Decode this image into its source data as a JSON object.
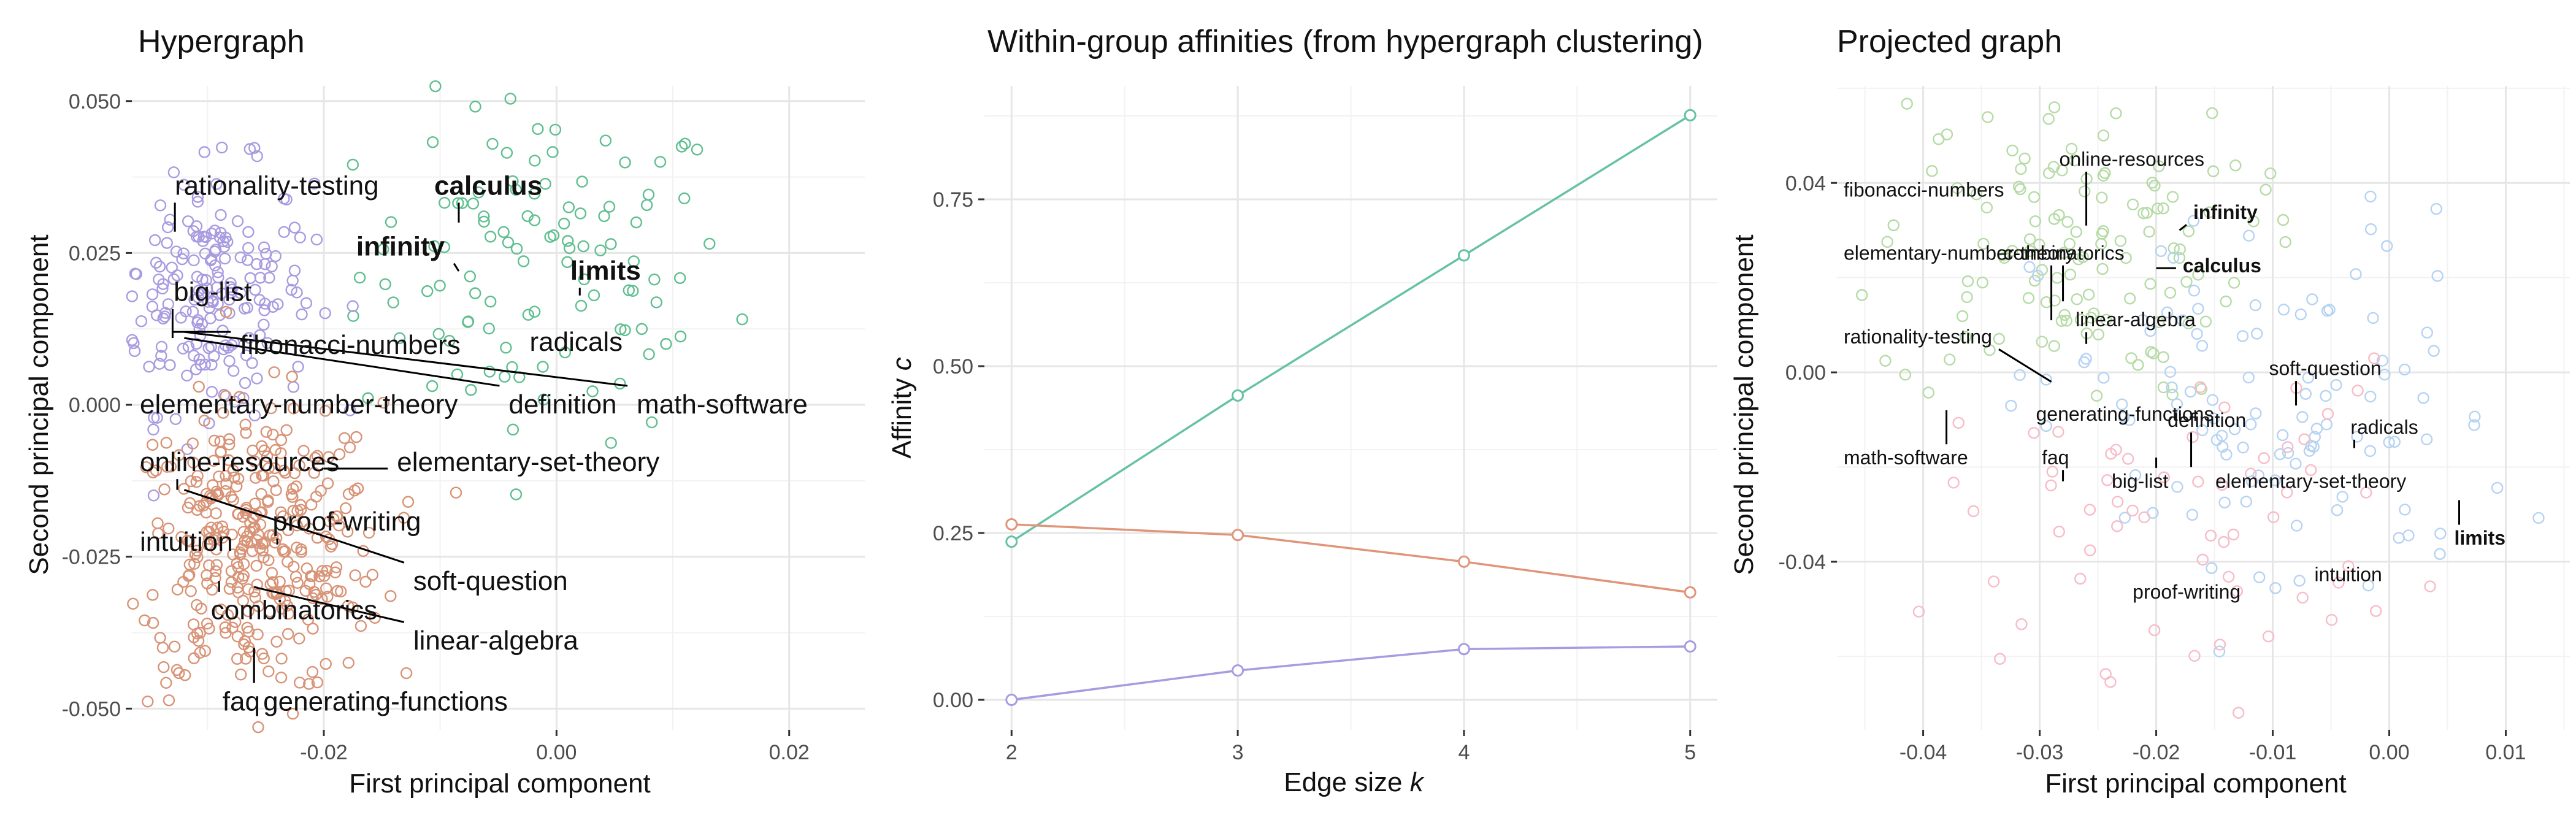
{
  "colors": {
    "hyper_green": "#5fbf8f",
    "hyper_purple": "#a99be0",
    "hyper_orange": "#d89376",
    "proj_green": "#b6dba6",
    "proj_blue": "#b6d3f2",
    "proj_pink": "#f6bcc8",
    "line_green": "#66c2a5",
    "line_orange": "#e0957b",
    "line_purple": "#a99be0"
  },
  "chart_data": [
    {
      "type": "scatter",
      "title": "Hypergraph",
      "xlabel": "First principal component",
      "ylabel": "Second principal component",
      "xlim": [
        -0.0365,
        0.0265
      ],
      "ylim": [
        -0.0535,
        0.0525
      ],
      "xticks": [
        -0.02,
        0.0,
        0.02
      ],
      "xtick_labels": [
        "-0.02",
        "0.00",
        "0.02"
      ],
      "yticks": [
        -0.05,
        -0.025,
        0.0,
        0.025,
        0.05
      ],
      "ytick_labels": [
        "-0.050",
        "-0.025",
        "0.000",
        "0.025",
        "0.050"
      ],
      "grid": true,
      "clusters": [
        {
          "color": "green",
          "n": 110,
          "cx": -0.001,
          "cy": 0.022,
          "sx": 0.008,
          "sy": 0.014
        },
        {
          "color": "purple",
          "n": 200,
          "cx": -0.03,
          "cy": 0.019,
          "sx": 0.0045,
          "sy": 0.01
        },
        {
          "color": "orange",
          "n": 360,
          "cx": -0.026,
          "cy": -0.024,
          "sx": 0.0055,
          "sy": 0.012
        }
      ],
      "labels": [
        {
          "text": "rationality-testing",
          "color": "purple",
          "x": -0.0336,
          "y": 0.0362,
          "bold": false,
          "px": -0.0328,
          "py": 0.0285
        },
        {
          "text": "calculus",
          "color": "green",
          "x": -0.0113,
          "y": 0.0362,
          "bold": true,
          "px": -0.0084,
          "py": 0.03
        },
        {
          "text": "infinity",
          "color": "green",
          "x": -0.018,
          "y": 0.0262,
          "bold": true,
          "px": -0.0084,
          "py": 0.022
        },
        {
          "text": "limits",
          "color": "green",
          "x": 0.0004,
          "y": 0.0222,
          "bold": true,
          "px": 0.002,
          "py": 0.018
        },
        {
          "text": "big-list",
          "color": "purple",
          "x": -0.0337,
          "y": 0.0187,
          "bold": false,
          "px": -0.033,
          "py": 0.011
        },
        {
          "text": "radicals",
          "color": "green",
          "x": -0.0031,
          "y": 0.0105,
          "bold": false,
          "px": 0.001,
          "py": 0.008
        },
        {
          "text": "fibonacci-numbers",
          "color": "purple",
          "x": -0.028,
          "y": 0.01,
          "bold": false,
          "px": -0.033,
          "py": 0.012
        },
        {
          "text": "definition",
          "color": "purple",
          "x": -0.0049,
          "y": 0.0002,
          "bold": false,
          "px": -0.032,
          "py": 0.011
        },
        {
          "text": "math-software",
          "color": "purple",
          "x": 0.0061,
          "y": 0.0002,
          "bold": false,
          "px": -0.032,
          "py": 0.012
        },
        {
          "text": "elementary-number-theory",
          "color": "orange",
          "x": -0.037,
          "y": 0.0002,
          "bold": false,
          "px": -0.028,
          "py": 0.002
        },
        {
          "text": "online-resources",
          "color": "purple",
          "x": -0.037,
          "y": -0.0093,
          "bold": false,
          "px": -0.0326,
          "py": -0.014
        },
        {
          "text": "elementary-set-theory",
          "color": "orange",
          "x": -0.0145,
          "y": -0.0093,
          "bold": false,
          "px": -0.02,
          "py": -0.0105
        },
        {
          "text": "intuition",
          "color": "orange",
          "x": -0.037,
          "y": -0.0224,
          "bold": false,
          "px": -0.0308,
          "py": -0.025
        },
        {
          "text": "proof-writing",
          "color": "orange",
          "x": -0.0252,
          "y": -0.0191,
          "bold": false,
          "px": -0.024,
          "py": -0.023
        },
        {
          "text": "soft-question",
          "color": "orange",
          "x": -0.0131,
          "y": -0.0289,
          "bold": false,
          "px": -0.032,
          "py": -0.014
        },
        {
          "text": "combinatorics",
          "color": "orange",
          "x": -0.0305,
          "y": -0.0337,
          "bold": false,
          "px": -0.029,
          "py": -0.029
        },
        {
          "text": "linear-algebra",
          "color": "orange",
          "x": -0.0131,
          "y": -0.0387,
          "bold": false,
          "px": -0.026,
          "py": -0.03
        },
        {
          "text": "faq",
          "color": "orange",
          "x": -0.0295,
          "y": -0.0487,
          "bold": false,
          "px": -0.026,
          "py": -0.04
        },
        {
          "text": "generating-functions",
          "color": "orange",
          "x": -0.026,
          "y": -0.0487,
          "bold": false,
          "px": -0.026,
          "py": -0.04
        }
      ]
    },
    {
      "type": "line",
      "title": "Within-group affinities (from hypergraph clustering)",
      "xlabel": "Edge size ",
      "xlabel_italic": "k",
      "ylabel": "Affinity ",
      "ylabel_italic": "c",
      "xlim": [
        1.88,
        5.12
      ],
      "ylim": [
        -0.045,
        0.92
      ],
      "x": [
        2,
        3,
        4,
        5
      ],
      "xticks": [
        2,
        3,
        4,
        5
      ],
      "xtick_labels": [
        "2",
        "3",
        "4",
        "5"
      ],
      "yticks": [
        0.0,
        0.25,
        0.5,
        0.75
      ],
      "ytick_labels": [
        "0.00",
        "0.25",
        "0.50",
        "0.75"
      ],
      "grid": true,
      "series": [
        {
          "color": "green",
          "values": [
            0.237,
            0.456,
            0.666,
            0.876
          ]
        },
        {
          "color": "orange",
          "values": [
            0.263,
            0.247,
            0.207,
            0.161
          ]
        },
        {
          "color": "purple",
          "values": [
            0.0,
            0.044,
            0.076,
            0.08
          ]
        }
      ]
    },
    {
      "type": "scatter",
      "title": "Projected graph",
      "xlabel": "First principal component",
      "ylabel": "Second principal component",
      "xlim": [
        -0.0474,
        0.0155
      ],
      "ylim": [
        -0.0755,
        0.0605
      ],
      "xticks": [
        -0.04,
        -0.03,
        -0.02,
        -0.01,
        0.0,
        0.01
      ],
      "xtick_labels": [
        "-0.04",
        "-0.03",
        "-0.02",
        "-0.01",
        "0.00",
        "0.01"
      ],
      "yticks": [
        -0.04,
        0.0,
        0.04
      ],
      "ytick_labels": [
        "-0.04",
        "0.00",
        "0.04"
      ],
      "grid": true,
      "clusters": [
        {
          "color": "green",
          "n": 130,
          "cx": -0.028,
          "cy": 0.026,
          "sx": 0.008,
          "sy": 0.016
        },
        {
          "color": "blue",
          "n": 110,
          "cx": -0.01,
          "cy": -0.01,
          "sx": 0.01,
          "sy": 0.022
        },
        {
          "color": "pink",
          "n": 60,
          "cx": -0.018,
          "cy": -0.03,
          "sx": 0.01,
          "sy": 0.016
        }
      ],
      "labels": [
        {
          "text": "online-resources",
          "color": "green",
          "x": -0.0289,
          "y": 0.0451,
          "bold": false,
          "px": -0.026,
          "py": 0.031
        },
        {
          "text": "fibonacci-numbers",
          "color": "green",
          "x": -0.0474,
          "y": 0.0386,
          "bold": false,
          "px": -0.033,
          "py": 0.04
        },
        {
          "text": "infinity",
          "color": "green",
          "x": -0.0174,
          "y": 0.0339,
          "bold": true,
          "px": -0.018,
          "py": 0.03
        },
        {
          "text": "elementary-number-theory",
          "color": "green",
          "x": -0.0474,
          "y": 0.0253,
          "bold": false,
          "px": -0.029,
          "py": 0.011
        },
        {
          "text": "combinatorics",
          "color": "green",
          "x": -0.0337,
          "y": 0.0253,
          "bold": false,
          "px": -0.028,
          "py": 0.015
        },
        {
          "text": "calculus",
          "color": "green",
          "x": -0.0183,
          "y": 0.0226,
          "bold": true,
          "px": -0.02,
          "py": 0.022
        },
        {
          "text": "linear-algebra",
          "color": "blue",
          "x": -0.0275,
          "y": 0.0112,
          "bold": false,
          "px": -0.026,
          "py": 0.006
        },
        {
          "text": "rationality-testing",
          "color": "green",
          "x": -0.0474,
          "y": 0.0076,
          "bold": false,
          "px": -0.029,
          "py": -0.002
        },
        {
          "text": "soft-question",
          "color": "blue",
          "x": -0.0109,
          "y": 0.0009,
          "bold": false,
          "px": -0.008,
          "py": -0.007
        },
        {
          "text": "generating-functions",
          "color": "green",
          "x": -0.0309,
          "y": -0.0087,
          "bold": false,
          "px": -0.026,
          "py": -0.01
        },
        {
          "text": "definition",
          "color": "blue",
          "x": -0.0196,
          "y": -0.01,
          "bold": false,
          "px": -0.017,
          "py": -0.02
        },
        {
          "text": "radicals",
          "color": "blue",
          "x": -0.0039,
          "y": -0.0115,
          "bold": false,
          "px": -0.003,
          "py": -0.016
        },
        {
          "text": "math-software",
          "color": "green",
          "x": -0.0474,
          "y": -0.0179,
          "bold": false,
          "px": -0.038,
          "py": -0.008
        },
        {
          "text": "faq",
          "color": "pink",
          "x": -0.0304,
          "y": -0.0179,
          "bold": false,
          "px": -0.028,
          "py": -0.023
        },
        {
          "text": "big-list",
          "color": "blue",
          "x": -0.0244,
          "y": -0.0229,
          "bold": false,
          "px": -0.02,
          "py": -0.018
        },
        {
          "text": "elementary-set-theory",
          "color": "blue",
          "x": -0.0155,
          "y": -0.0229,
          "bold": false,
          "px": -0.012,
          "py": -0.02
        },
        {
          "text": "limits",
          "color": "blue",
          "x": 0.005,
          "y": -0.0349,
          "bold": true,
          "px": 0.006,
          "py": -0.027
        },
        {
          "text": "intuition",
          "color": "pink",
          "x": -0.007,
          "y": -0.0426,
          "bold": false,
          "px": -0.006,
          "py": -0.042
        },
        {
          "text": "proof-writing",
          "color": "blue",
          "x": -0.0226,
          "y": -0.0463,
          "bold": false,
          "px": -0.02,
          "py": -0.043
        }
      ]
    }
  ]
}
